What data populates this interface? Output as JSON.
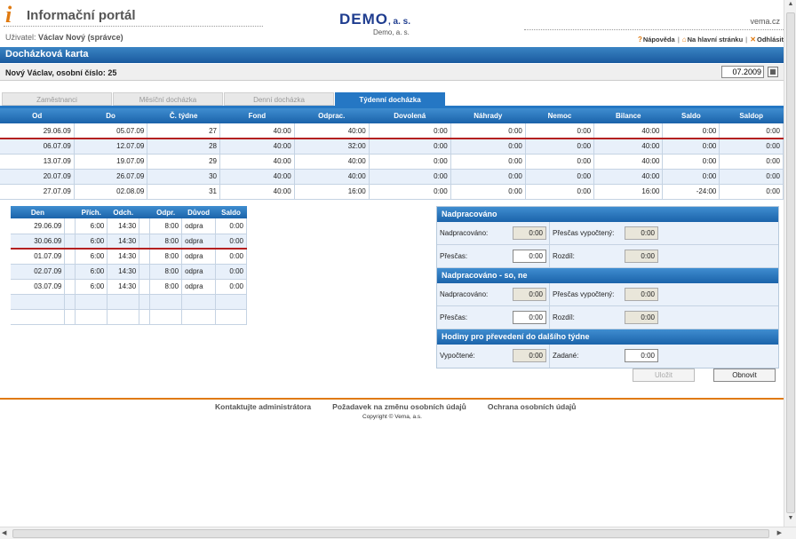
{
  "header": {
    "logo_letter": "i",
    "portal_title": "Informační portál",
    "user_label": "Uživatel:",
    "user_name": "Václav Nový (správce)",
    "company_logo_main": "DEMO",
    "company_logo_suffix": ", a. s.",
    "company_sub": "Demo, a. s.",
    "site": "vema.cz",
    "links": {
      "help": "Nápověda",
      "home": "Na hlavní stránku",
      "logout": "Odhlásit"
    }
  },
  "section_title": "Docházková karta",
  "employee": {
    "label": "Nový Václav, osobní číslo: 25",
    "period": "07.2009"
  },
  "tabs": [
    {
      "label": "Zaměstnanci"
    },
    {
      "label": "Měsíční docházka"
    },
    {
      "label": "Denní docházka"
    },
    {
      "label": "Týdenní docházka"
    }
  ],
  "week_table": {
    "headers": [
      "Od",
      "Do",
      "Č. týdne",
      "Fond",
      "Odprac.",
      "Dovolená",
      "Náhrady",
      "Nemoc",
      "Bilance",
      "Saldo",
      "Saldop"
    ],
    "rows": [
      [
        "29.06.09",
        "05.07.09",
        "27",
        "40:00",
        "40:00",
        "0:00",
        "0:00",
        "0:00",
        "40:00",
        "0:00",
        "0:00"
      ],
      [
        "06.07.09",
        "12.07.09",
        "28",
        "40:00",
        "32:00",
        "0:00",
        "0:00",
        "0:00",
        "40:00",
        "0:00",
        "0:00"
      ],
      [
        "13.07.09",
        "19.07.09",
        "29",
        "40:00",
        "40:00",
        "0:00",
        "0:00",
        "0:00",
        "40:00",
        "0:00",
        "0:00"
      ],
      [
        "20.07.09",
        "26.07.09",
        "30",
        "40:00",
        "40:00",
        "0:00",
        "0:00",
        "0:00",
        "40:00",
        "0:00",
        "0:00"
      ],
      [
        "27.07.09",
        "02.08.09",
        "31",
        "40:00",
        "16:00",
        "0:00",
        "0:00",
        "0:00",
        "16:00",
        "-24:00",
        "0:00"
      ]
    ]
  },
  "day_table": {
    "headers": [
      "Den",
      "",
      "Přích.",
      "Odch.",
      "",
      "Odpr.",
      "Důvod",
      "Saldo"
    ],
    "rows": [
      [
        "29.06.09",
        "",
        "6:00",
        "14:30",
        "",
        "8:00",
        "odpra",
        "0:00"
      ],
      [
        "30.06.09",
        "",
        "6:00",
        "14:30",
        "",
        "8:00",
        "odpra",
        "0:00"
      ],
      [
        "01.07.09",
        "",
        "6:00",
        "14:30",
        "",
        "8:00",
        "odpra",
        "0:00"
      ],
      [
        "02.07.09",
        "",
        "6:00",
        "14:30",
        "",
        "8:00",
        "odpra",
        "0:00"
      ],
      [
        "03.07.09",
        "",
        "6:00",
        "14:30",
        "",
        "8:00",
        "odpra",
        "0:00"
      ],
      [
        "",
        "",
        "",
        "",
        "",
        "",
        "",
        ""
      ],
      [
        "",
        "",
        "",
        "",
        "",
        "",
        "",
        ""
      ]
    ]
  },
  "panel": {
    "overtime": {
      "title": "Nadpracováno",
      "worked_label": "Nadpracováno:",
      "worked": "0:00",
      "calc_label": "Přesčas vypočtený:",
      "calc": "0:00",
      "overtime_label": "Přesčas:",
      "overtime": "0:00",
      "diff_label": "Rozdíl:",
      "diff": "0:00"
    },
    "weekend": {
      "title": "Nadpracováno - so, ne",
      "worked_label": "Nadpracováno:",
      "worked": "0:00",
      "calc_label": "Přesčas vypočtený:",
      "calc": "0:00",
      "overtime_label": "Přesčas:",
      "overtime": "0:00",
      "diff_label": "Rozdíl:",
      "diff": "0:00"
    },
    "transfer": {
      "title": "Hodiny pro převedení do dalšího týdne",
      "calc_label": "Vypočtené:",
      "calc": "0:00",
      "entered_label": "Zadané:",
      "entered": "0:00"
    }
  },
  "buttons": {
    "save": "Uložit",
    "refresh": "Obnovit"
  },
  "footer": {
    "links": [
      "Kontaktujte administrátora",
      "Požadavek na změnu osobních údajů",
      "Ochrana osobních údajů"
    ],
    "copyright": "Copyright © Vema, a.s."
  }
}
